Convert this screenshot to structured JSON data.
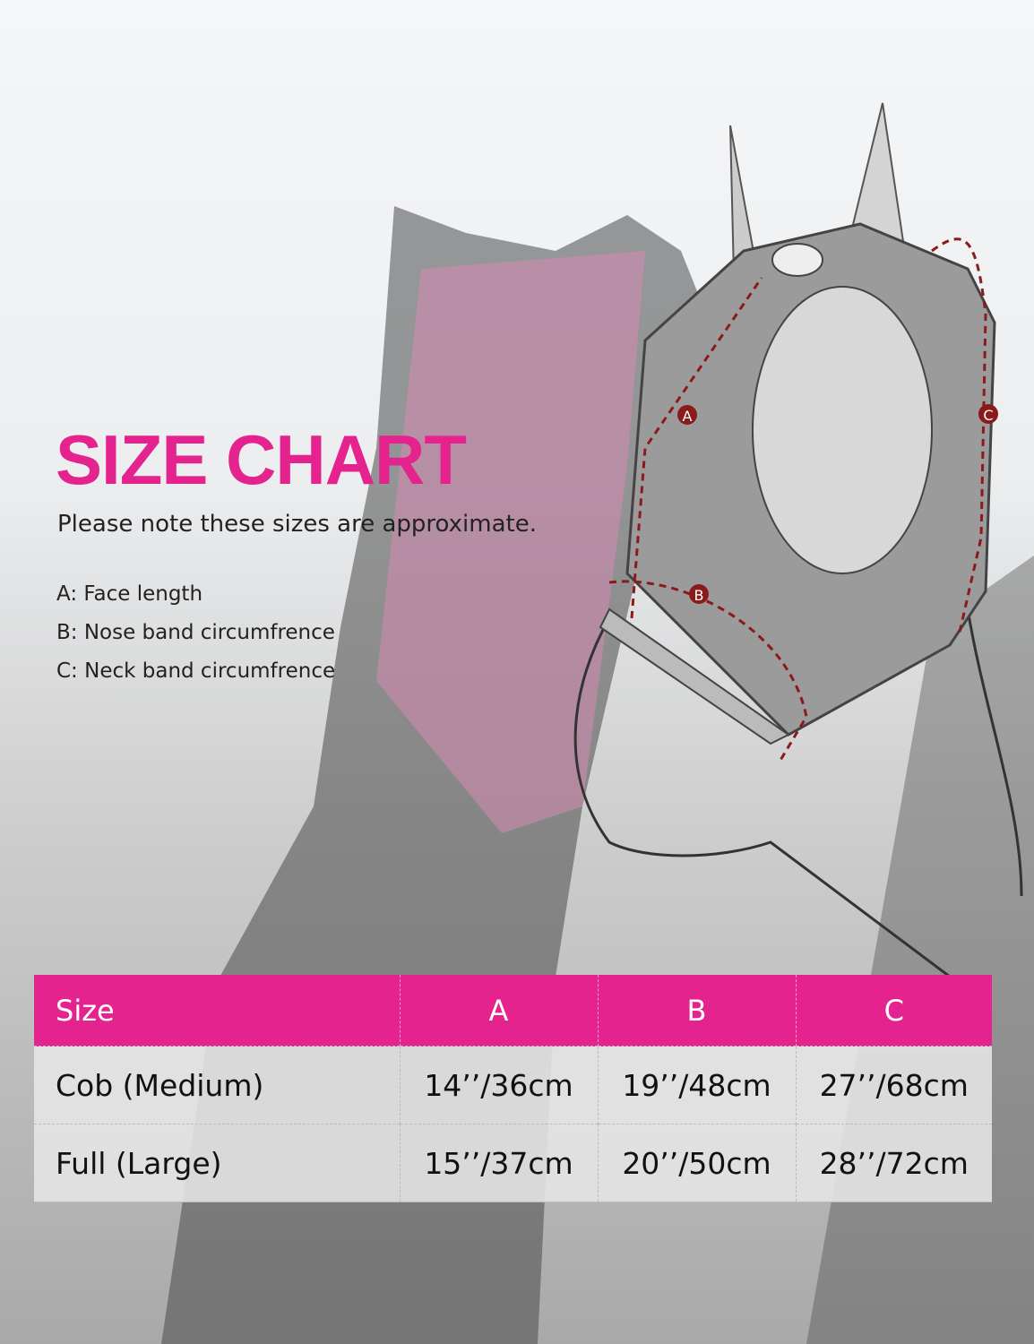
{
  "title": "SIZE CHART",
  "note": "Please note these sizes are approximate.",
  "legend": [
    "A: Face length",
    "B: Nose band circumfrence",
    "C: Neck band circumfrence"
  ],
  "diagram": {
    "markers": [
      "A",
      "B",
      "C"
    ]
  },
  "colors": {
    "accent": "#e4238f",
    "marker": "#8b1a1a"
  },
  "table": {
    "headers": [
      "Size",
      "A",
      "B",
      "C"
    ],
    "rows": [
      [
        "Cob (Medium)",
        "14’’/36cm",
        "19’’/48cm",
        "27’’/68cm"
      ],
      [
        "Full (Large)",
        "15’’/37cm",
        "20’’/50cm",
        "28’’/72cm"
      ]
    ]
  }
}
